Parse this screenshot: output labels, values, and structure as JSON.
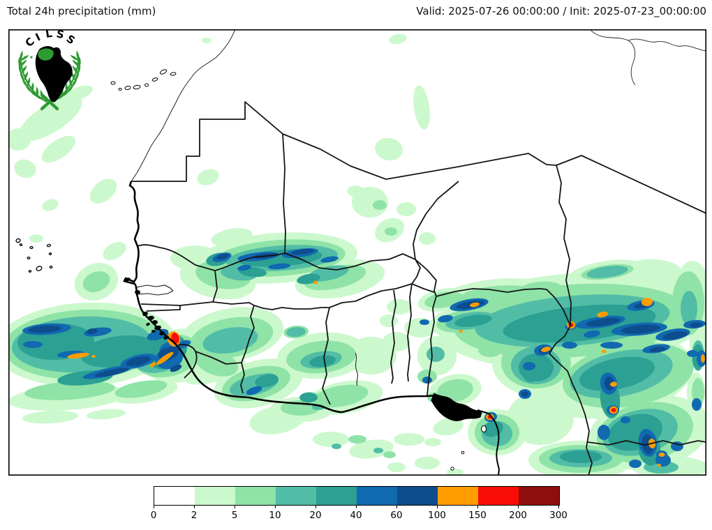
{
  "header": {
    "left_title": "Total 24h precipitation (mm)",
    "right_title": "Valid: 2025-07-26 00:00:00 / Init: 2025-07-23_00:00:00"
  },
  "logo": {
    "name": "CILSS",
    "letters": [
      "C",
      "I",
      "L",
      "S",
      "S"
    ],
    "wreath_color": "#2e9b30",
    "africa_color": "#000000",
    "region_color": "#2e9b30"
  },
  "colorbar": {
    "unit": "mm",
    "ticks": [
      "0",
      "2",
      "5",
      "10",
      "20",
      "40",
      "60",
      "100",
      "150",
      "200",
      "300"
    ],
    "colors": [
      "#ffffff",
      "#ccf8cd",
      "#8fe3a6",
      "#52bda6",
      "#2ba093",
      "#1169b0",
      "#0d4c8d",
      "#ff9c00",
      "#f80c05",
      "#8e0d0d"
    ]
  },
  "map": {
    "background": "#ffffff",
    "frame_color": "#000000",
    "border_color": "#141414",
    "coast_color": "#000000"
  }
}
